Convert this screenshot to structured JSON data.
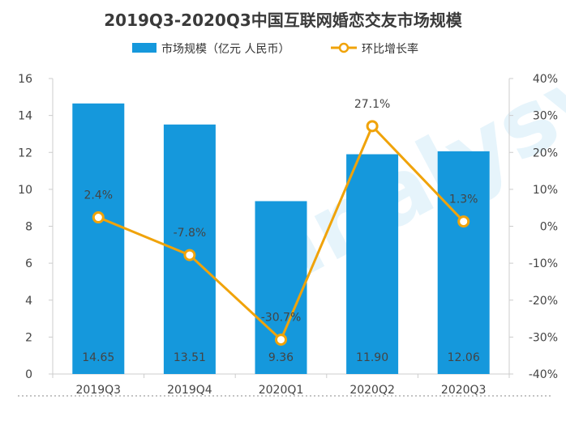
{
  "chart_data": {
    "type": "bar",
    "title": "2019Q3-2020Q3中国互联网婚恋交友市场规模",
    "categories": [
      "2019Q3",
      "2019Q4",
      "2020Q1",
      "2020Q2",
      "2020Q3"
    ],
    "series": [
      {
        "name": "市场规模（亿元 人民币）",
        "type": "bar",
        "axis": "left",
        "values": [
          14.65,
          13.51,
          9.36,
          11.9,
          12.06
        ],
        "labels": [
          "14.65",
          "13.51",
          "9.36",
          "11.90",
          "12.06"
        ],
        "color": "#1598dc"
      },
      {
        "name": "环比增长率",
        "type": "line",
        "axis": "right",
        "values": [
          2.4,
          -7.8,
          -30.7,
          27.1,
          1.3
        ],
        "labels": [
          "2.4%",
          "-7.8%",
          "-30.7%",
          "27.1%",
          "1.3%"
        ],
        "color": "#f0a30a"
      }
    ],
    "y_left": {
      "min": 0,
      "max": 16,
      "ticks": [
        "0",
        "2",
        "4",
        "6",
        "8",
        "10",
        "12",
        "14",
        "16"
      ]
    },
    "y_right": {
      "min": -40,
      "max": 40,
      "ticks": [
        "-40%",
        "-30%",
        "-20%",
        "-10%",
        "0%",
        "10%",
        "20%",
        "30%",
        "40%"
      ]
    },
    "legend_position": "top-center",
    "grid": false
  }
}
